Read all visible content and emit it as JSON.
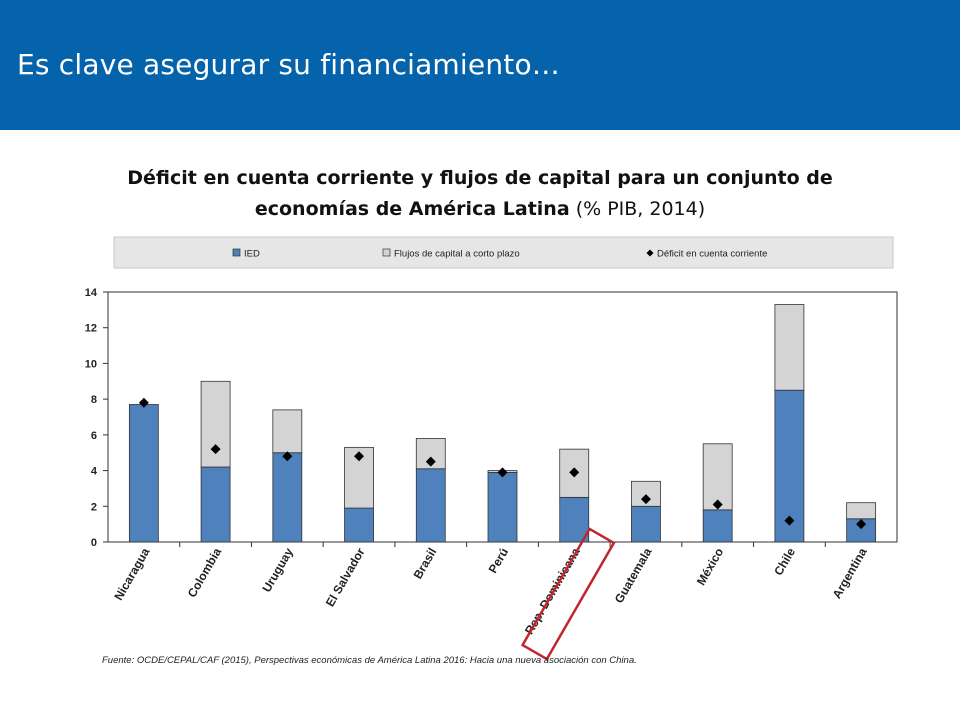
{
  "slide": {
    "title": "Es clave asegurar su financiamiento…",
    "source": "Fuente: OCDE/CEPAL/CAF (2015), Perspectivas económicas de América Latina 2016: Hacia una nueva asociación con China."
  },
  "chart_data": {
    "type": "bar",
    "title": "Déficit en cuenta corriente y flujos de capital para un conjunto de economías de América Latina",
    "subtitle": "(% PIB, 2014)",
    "categories": [
      "Nicaragua",
      "Colombia",
      "Uruguay",
      "El Salvador",
      "Brasil",
      "Perú",
      "Rep. Dominicana",
      "Guatemala",
      "México",
      "Chile",
      "Argentina"
    ],
    "series": [
      {
        "name": "IED",
        "kind": "stacked-bar",
        "color": "#4f81bd",
        "values": [
          7.7,
          4.2,
          5.0,
          1.9,
          4.1,
          3.9,
          2.5,
          2.0,
          1.8,
          8.5,
          1.3
        ]
      },
      {
        "name": "Flujos de capital a corto plazo",
        "kind": "stacked-bar",
        "color": "#d4d4d4",
        "values": [
          0.0,
          4.8,
          2.4,
          3.4,
          1.7,
          0.1,
          2.7,
          1.4,
          3.7,
          4.8,
          0.9
        ]
      },
      {
        "name": "Déficit en cuenta corriente",
        "kind": "marker",
        "marker": "diamond",
        "color": "#000000",
        "values": [
          7.8,
          5.2,
          4.8,
          4.8,
          4.5,
          3.9,
          3.9,
          2.4,
          2.1,
          1.2,
          1.0
        ]
      }
    ],
    "yticks": [
      0,
      2,
      4,
      6,
      8,
      10,
      12,
      14
    ],
    "ylim": [
      0,
      14
    ],
    "legend_placement": "top",
    "highlighted_category": "Rep. Dominicana",
    "highlight_color": "#c0262d",
    "grid": false
  }
}
